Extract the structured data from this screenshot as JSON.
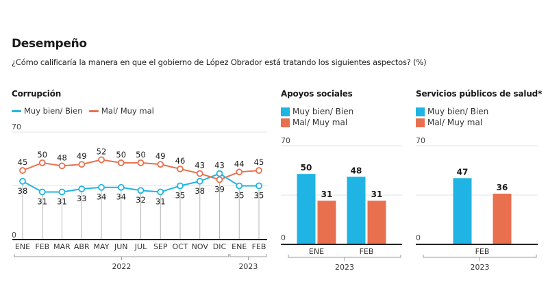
{
  "header": {
    "title": "Desempeño",
    "subtitle": "¿Cómo calificaría la manera en que el gobierno de López Obrador está tratando los siguientes aspectos? (%)"
  },
  "colors": {
    "positive": "#1fb4e3",
    "negative": "#e8704f",
    "axis": "#222222",
    "grid": "#e3e3e3",
    "drop_line": "#b5b5b5"
  },
  "legend": {
    "positive": "Muy bien/ Bien",
    "negative": "Mal/ Muy mal"
  },
  "chart_data": [
    {
      "type": "line",
      "title": "Corrupción",
      "categories": [
        "ENE",
        "FEB",
        "MAR",
        "ABR",
        "MAY",
        "JUN",
        "JUL",
        "SEP",
        "OCT",
        "NOV",
        "DIC",
        "ENE",
        "FEB"
      ],
      "groups": [
        {
          "label": "2022",
          "from": 0,
          "to": 10
        },
        {
          "label": "2023",
          "from": 11,
          "to": 12
        }
      ],
      "series": [
        {
          "name": "Muy bien/ Bien",
          "color_key": "positive",
          "values": [
            38,
            31,
            31,
            33,
            34,
            34,
            32,
            31,
            35,
            38,
            43,
            35,
            35
          ]
        },
        {
          "name": "Mal/ Muy mal",
          "color_key": "negative",
          "values": [
            45,
            50,
            48,
            49,
            52,
            50,
            50,
            49,
            46,
            43,
            39,
            44,
            45
          ]
        }
      ],
      "ylim": [
        0,
        70
      ],
      "yticks": [
        "0",
        "70"
      ],
      "grid": true,
      "legend_position": "top-left"
    },
    {
      "type": "bar",
      "title": "Apoyos sociales",
      "categories": [
        "ENE",
        "FEB"
      ],
      "groups": [
        {
          "label": "2023",
          "from": 0,
          "to": 1
        }
      ],
      "series": [
        {
          "name": "Muy bien/ Bien",
          "color_key": "positive",
          "values": [
            50,
            48
          ]
        },
        {
          "name": "Mal/ Muy mal",
          "color_key": "negative",
          "values": [
            31,
            31
          ]
        }
      ],
      "ylim": [
        0,
        70
      ],
      "yticks": [
        "0",
        "70"
      ],
      "grid": true,
      "legend_position": "top-left"
    },
    {
      "type": "bar",
      "title": "Servicios públicos de salud*",
      "categories": [
        "FEB"
      ],
      "groups": [
        {
          "label": "2023",
          "from": 0,
          "to": 0
        }
      ],
      "series": [
        {
          "name": "Muy bien/ Bien",
          "color_key": "positive",
          "values": [
            47
          ]
        },
        {
          "name": "Mal/ Muy mal",
          "color_key": "negative",
          "values": [
            36
          ]
        }
      ],
      "ylim": [
        0,
        70
      ],
      "yticks": [
        "0",
        "70"
      ],
      "grid": true,
      "legend_position": "top-left"
    }
  ]
}
